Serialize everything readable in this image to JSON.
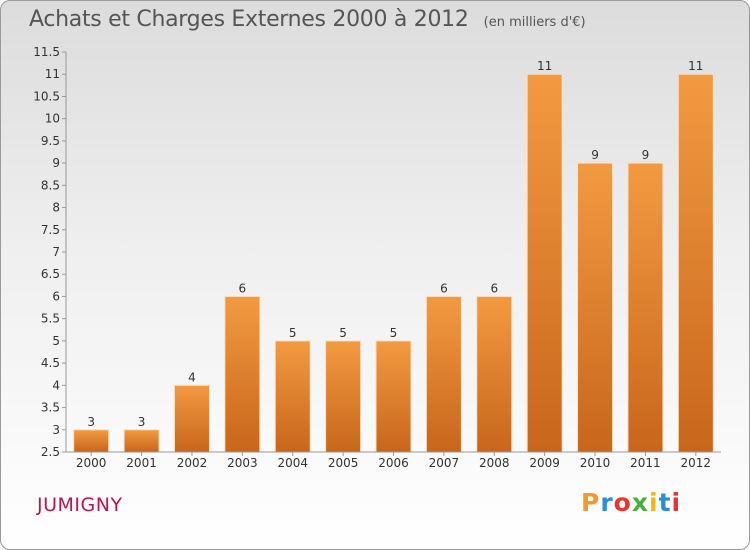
{
  "chart_data": {
    "type": "bar",
    "title": "Achats et Charges Externes 2000 à 2012",
    "subtitle": "(en milliers d'€)",
    "categories": [
      "2000",
      "2001",
      "2002",
      "2003",
      "2004",
      "2005",
      "2006",
      "2007",
      "2008",
      "2009",
      "2010",
      "2011",
      "2012"
    ],
    "values": [
      3,
      3,
      4,
      6,
      5,
      5,
      5,
      6,
      6,
      11,
      9,
      9,
      11
    ],
    "ylim": [
      2.5,
      11.5
    ],
    "yticks": [
      "2.5",
      "3",
      "3.5",
      "4",
      "4.5",
      "5",
      "5.5",
      "6",
      "6.5",
      "7",
      "7.5",
      "8",
      "8.5",
      "9",
      "9.5",
      "10",
      "10.5",
      "11",
      "11.5"
    ],
    "grid": false,
    "bar_color": "#f29a42",
    "bar_color_dark": "#c8661b"
  },
  "commune": "JUMIGNY",
  "logo": {
    "letters": [
      "P",
      "r",
      "o",
      "x",
      "i",
      "t",
      "i"
    ],
    "colors": [
      "#f39a2a",
      "#2c8fd6",
      "#e8352f",
      "#4caf3a",
      "#f3b51a",
      "#2c8fd6",
      "#e8352f"
    ]
  }
}
